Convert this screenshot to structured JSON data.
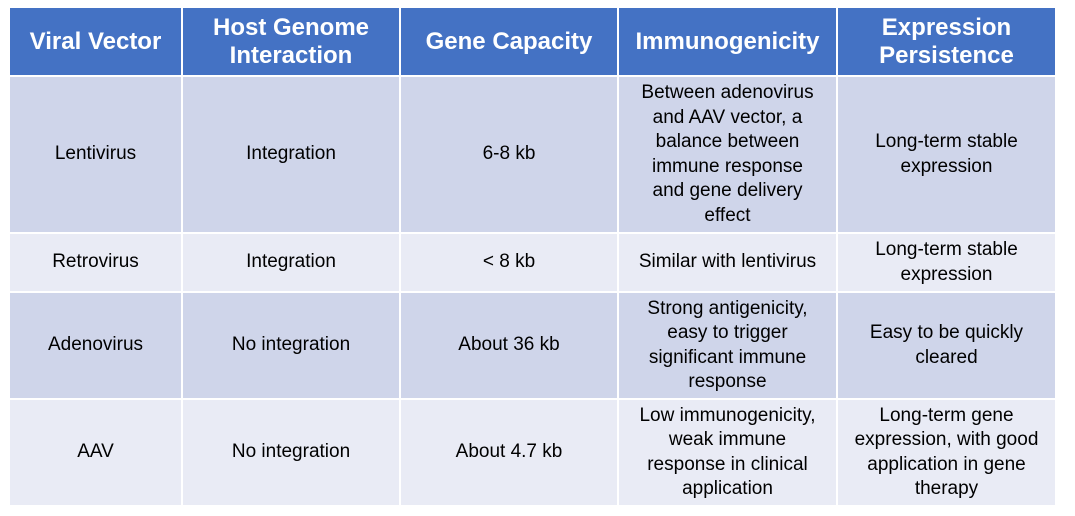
{
  "table": {
    "headers": [
      [
        "Viral Vector"
      ],
      [
        "Host Genome",
        "Interaction"
      ],
      [
        "Gene Capacity"
      ],
      [
        "Immunogenicity"
      ],
      [
        "Expression",
        "Persistence"
      ]
    ],
    "rows": [
      {
        "vector": [
          "Lentivirus"
        ],
        "interaction": [
          "Integration"
        ],
        "capacity": [
          "6-8 kb"
        ],
        "immunogenicity": [
          "Between adenovirus",
          "and AAV vector, a",
          "balance between",
          "immune response",
          "and gene delivery",
          "effect"
        ],
        "persistence": [
          "Long-term stable",
          "expression"
        ]
      },
      {
        "vector": [
          "Retrovirus"
        ],
        "interaction": [
          "Integration"
        ],
        "capacity": [
          "< 8 kb"
        ],
        "immunogenicity": [
          "Similar with lentivirus"
        ],
        "persistence": [
          "Long-term stable",
          "expression"
        ]
      },
      {
        "vector": [
          "Adenovirus"
        ],
        "interaction": [
          "No integration"
        ],
        "capacity": [
          "About 36 kb"
        ],
        "immunogenicity": [
          "Strong antigenicity,",
          "easy to trigger",
          "significant immune",
          "response"
        ],
        "persistence": [
          "Easy to be quickly",
          "cleared"
        ]
      },
      {
        "vector": [
          "AAV"
        ],
        "interaction": [
          "No integration"
        ],
        "capacity": [
          "About 4.7 kb"
        ],
        "immunogenicity": [
          "Low immunogenicity,",
          "weak immune",
          "response in clinical",
          "application"
        ],
        "persistence": [
          "Long-term gene",
          "expression, with good",
          "application in gene",
          "therapy"
        ]
      }
    ]
  },
  "colors": {
    "header_bg": "#4472c4",
    "header_text": "#ffffff",
    "row_odd_bg": "#cfd5ea",
    "row_even_bg": "#e9ebf5"
  }
}
